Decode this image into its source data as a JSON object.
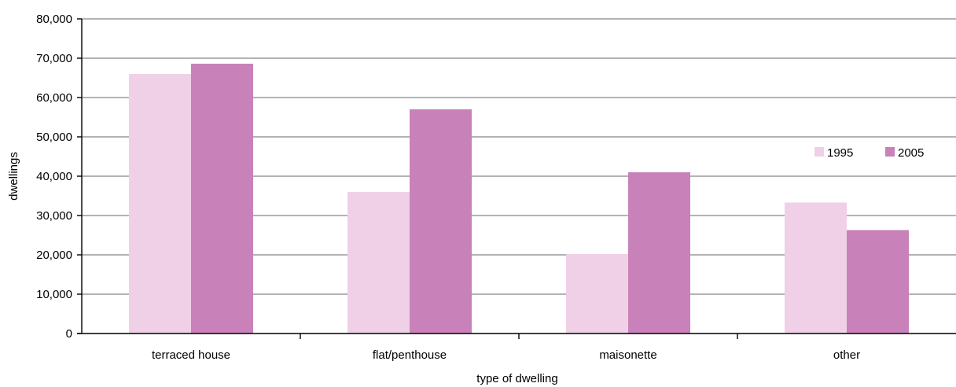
{
  "chart_data": {
    "type": "bar",
    "xlabel": "type of dwelling",
    "ylabel": "dwellings",
    "ylim": [
      0,
      80000
    ],
    "yticks": [
      0,
      10000,
      20000,
      30000,
      40000,
      50000,
      60000,
      70000,
      80000
    ],
    "ytick_labels": [
      "0",
      "10,000",
      "20,000",
      "30,000",
      "40,000",
      "50,000",
      "60,000",
      "70,000",
      "80,000"
    ],
    "categories": [
      "terraced house",
      "flat/penthouse",
      "maisonette",
      "other"
    ],
    "series": [
      {
        "name": "1995",
        "color": "#f0d0e6",
        "values": [
          66000,
          36000,
          20200,
          33300
        ]
      },
      {
        "name": "2005",
        "color": "#c882b9",
        "values": [
          68600,
          57000,
          41000,
          26300
        ]
      }
    ],
    "grid": true,
    "legend_position": "right"
  }
}
